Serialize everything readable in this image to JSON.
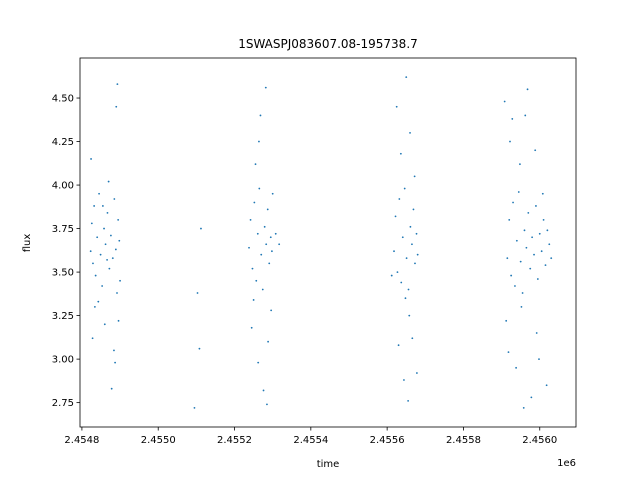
{
  "chart_data": {
    "type": "scatter",
    "title": "1SWASPJ083607.08-195738.7",
    "xlabel": "time",
    "ylabel": "flux",
    "x_offset_label": "1e6",
    "xlim": [
      2454795,
      2456095
    ],
    "ylim": [
      2.61,
      4.73
    ],
    "x_ticks": [
      2454800,
      2455000,
      2455200,
      2455400,
      2455600,
      2455800,
      2456000
    ],
    "x_tick_labels": [
      "2.4548",
      "2.4550",
      "2.4552",
      "2.4554",
      "2.4556",
      "2.4558",
      "2.4560"
    ],
    "y_ticks": [
      2.75,
      3.0,
      3.25,
      3.5,
      3.75,
      4.0,
      4.25,
      4.5
    ],
    "y_tick_labels": [
      "2.75",
      "3.00",
      "3.25",
      "3.50",
      "3.75",
      "4.00",
      "4.25",
      "4.50"
    ],
    "grid": false,
    "legend": "none",
    "point_color": "#1f77b4",
    "series": [
      {
        "points": [
          [
            2454823,
            3.62
          ],
          [
            2454826,
            3.78
          ],
          [
            2454829,
            3.55
          ],
          [
            2454832,
            3.88
          ],
          [
            2454836,
            3.48
          ],
          [
            2454840,
            3.7
          ],
          [
            2454845,
            3.95
          ],
          [
            2454849,
            3.6
          ],
          [
            2454853,
            3.42
          ],
          [
            2454858,
            3.75
          ],
          [
            2454862,
            3.66
          ],
          [
            2454867,
            3.84
          ],
          [
            2454872,
            3.52
          ],
          [
            2454876,
            3.71
          ],
          [
            2454881,
            3.58
          ],
          [
            2454885,
            3.92
          ],
          [
            2454889,
            3.63
          ],
          [
            2454892,
            3.38
          ],
          [
            2454895,
            3.8
          ],
          [
            2454898,
            3.68
          ],
          [
            2454824,
            4.15
          ],
          [
            2454828,
            3.12
          ],
          [
            2454834,
            3.3
          ],
          [
            2454860,
            3.2
          ],
          [
            2454870,
            4.02
          ],
          [
            2454884,
            3.05
          ],
          [
            2454890,
            4.45
          ],
          [
            2454896,
            3.22
          ],
          [
            2454893,
            4.58
          ],
          [
            2454878,
            2.83
          ],
          [
            2454887,
            2.98
          ],
          [
            2454900,
            3.45
          ],
          [
            2454855,
            3.88
          ],
          [
            2454843,
            3.33
          ],
          [
            2454866,
            3.57
          ],
          [
            2455238,
            3.64
          ],
          [
            2455242,
            3.8
          ],
          [
            2455247,
            3.52
          ],
          [
            2455252,
            3.9
          ],
          [
            2455257,
            3.45
          ],
          [
            2455261,
            3.72
          ],
          [
            2455265,
            3.98
          ],
          [
            2455270,
            3.6
          ],
          [
            2455274,
            3.4
          ],
          [
            2455279,
            3.76
          ],
          [
            2455283,
            3.66
          ],
          [
            2455287,
            3.86
          ],
          [
            2455291,
            3.55
          ],
          [
            2455295,
            3.7
          ],
          [
            2455298,
            3.62
          ],
          [
            2455245,
            3.18
          ],
          [
            2455255,
            4.12
          ],
          [
            2455262,
            2.98
          ],
          [
            2455268,
            4.4
          ],
          [
            2455276,
            2.82
          ],
          [
            2455282,
            4.56
          ],
          [
            2455288,
            3.1
          ],
          [
            2455296,
            3.28
          ],
          [
            2455300,
            3.95
          ],
          [
            2455264,
            4.25
          ],
          [
            2455308,
            3.72
          ],
          [
            2455112,
            3.75
          ],
          [
            2455103,
            3.38
          ],
          [
            2455108,
            3.06
          ],
          [
            2455095,
            2.72
          ],
          [
            2455317,
            3.66
          ],
          [
            2455250,
            3.34
          ],
          [
            2455285,
            2.74
          ],
          [
            2455618,
            3.62
          ],
          [
            2455622,
            3.82
          ],
          [
            2455627,
            3.5
          ],
          [
            2455632,
            3.92
          ],
          [
            2455637,
            3.44
          ],
          [
            2455641,
            3.7
          ],
          [
            2455646,
            3.98
          ],
          [
            2455651,
            3.58
          ],
          [
            2455656,
            3.4
          ],
          [
            2455661,
            3.76
          ],
          [
            2455665,
            3.66
          ],
          [
            2455669,
            3.86
          ],
          [
            2455673,
            3.55
          ],
          [
            2455677,
            3.72
          ],
          [
            2455680,
            3.6
          ],
          [
            2455625,
            4.45
          ],
          [
            2455630,
            3.08
          ],
          [
            2455636,
            4.18
          ],
          [
            2455644,
            2.88
          ],
          [
            2455650,
            4.62
          ],
          [
            2455655,
            2.76
          ],
          [
            2455660,
            4.3
          ],
          [
            2455666,
            3.12
          ],
          [
            2455672,
            4.05
          ],
          [
            2455678,
            2.92
          ],
          [
            2455612,
            3.48
          ],
          [
            2455658,
            3.25
          ],
          [
            2455648,
            3.35
          ],
          [
            2455915,
            3.58
          ],
          [
            2455920,
            3.8
          ],
          [
            2455925,
            3.48
          ],
          [
            2455930,
            3.9
          ],
          [
            2455935,
            3.42
          ],
          [
            2455940,
            3.68
          ],
          [
            2455945,
            3.96
          ],
          [
            2455950,
            3.56
          ],
          [
            2455955,
            3.38
          ],
          [
            2455960,
            3.74
          ],
          [
            2455965,
            3.64
          ],
          [
            2455970,
            3.84
          ],
          [
            2455975,
            3.52
          ],
          [
            2455980,
            3.7
          ],
          [
            2455985,
            3.6
          ],
          [
            2455990,
            3.88
          ],
          [
            2455995,
            3.46
          ],
          [
            2456000,
            3.72
          ],
          [
            2456005,
            3.62
          ],
          [
            2456010,
            3.8
          ],
          [
            2456015,
            3.54
          ],
          [
            2456020,
            3.74
          ],
          [
            2456025,
            3.66
          ],
          [
            2456030,
            3.58
          ],
          [
            2455908,
            4.48
          ],
          [
            2455912,
            3.22
          ],
          [
            2455918,
            3.04
          ],
          [
            2455928,
            4.38
          ],
          [
            2455938,
            2.95
          ],
          [
            2455948,
            4.12
          ],
          [
            2455958,
            2.72
          ],
          [
            2455968,
            4.55
          ],
          [
            2455978,
            2.78
          ],
          [
            2455988,
            4.2
          ],
          [
            2455998,
            3.0
          ],
          [
            2456008,
            3.95
          ],
          [
            2456018,
            2.85
          ],
          [
            2455922,
            4.25
          ],
          [
            2455962,
            4.4
          ],
          [
            2455992,
            3.15
          ],
          [
            2455952,
            3.3
          ]
        ]
      }
    ]
  }
}
